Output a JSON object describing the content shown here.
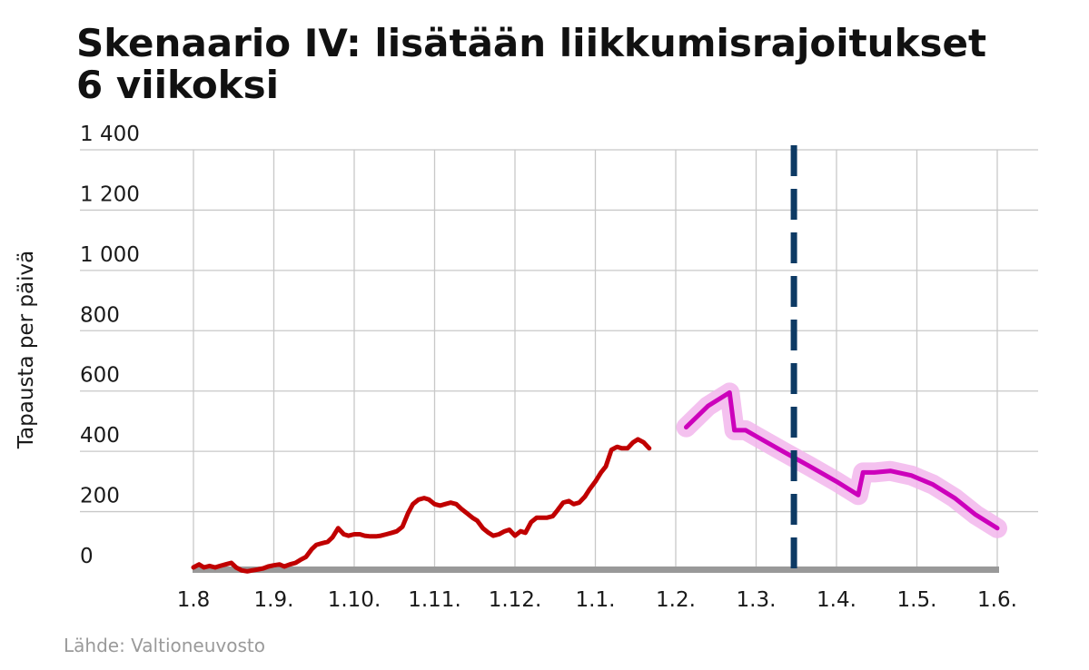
{
  "chart_data": {
    "type": "line",
    "title_lines": [
      "Skenaario IV: lisätään liikkumisrajoitukset",
      "6 viikoksi"
    ],
    "ylabel": "Tapausta per päivä",
    "source": "Lähde: Valtioneuvosto",
    "ylim": [
      0,
      1400
    ],
    "y_ticks": [
      0,
      200,
      400,
      600,
      800,
      1000,
      1200,
      1400
    ],
    "y_tick_labels": [
      "0",
      "200",
      "400",
      "600",
      "800",
      "1 000",
      "1 200",
      "1 400"
    ],
    "x_ticks": [
      "1.8",
      "1.9.",
      "1.10.",
      "1.11.",
      "1.12.",
      "1.1.",
      "1.2.",
      "1.3.",
      "1.4.",
      "1.5.",
      "1.6."
    ],
    "grid": true,
    "marker": {
      "type": "vertical-dashed-line",
      "x": 7.47,
      "color": "#0d3a64"
    },
    "series": [
      {
        "kind": "observed",
        "color": "#c00000",
        "points": [
          [
            0.0,
            15
          ],
          [
            0.07,
            25
          ],
          [
            0.13,
            15
          ],
          [
            0.2,
            20
          ],
          [
            0.27,
            15
          ],
          [
            0.33,
            20
          ],
          [
            0.4,
            25
          ],
          [
            0.47,
            30
          ],
          [
            0.53,
            15
          ],
          [
            0.6,
            5
          ],
          [
            0.67,
            2
          ],
          [
            0.73,
            5
          ],
          [
            0.8,
            8
          ],
          [
            0.87,
            12
          ],
          [
            0.93,
            18
          ],
          [
            1.0,
            22
          ],
          [
            1.07,
            25
          ],
          [
            1.13,
            18
          ],
          [
            1.2,
            25
          ],
          [
            1.27,
            30
          ],
          [
            1.33,
            40
          ],
          [
            1.4,
            50
          ],
          [
            1.47,
            75
          ],
          [
            1.53,
            90
          ],
          [
            1.6,
            95
          ],
          [
            1.67,
            100
          ],
          [
            1.73,
            115
          ],
          [
            1.8,
            145
          ],
          [
            1.87,
            125
          ],
          [
            1.93,
            120
          ],
          [
            2.0,
            125
          ],
          [
            2.07,
            125
          ],
          [
            2.13,
            120
          ],
          [
            2.2,
            118
          ],
          [
            2.27,
            118
          ],
          [
            2.33,
            120
          ],
          [
            2.4,
            125
          ],
          [
            2.47,
            130
          ],
          [
            2.53,
            135
          ],
          [
            2.6,
            150
          ],
          [
            2.67,
            195
          ],
          [
            2.73,
            225
          ],
          [
            2.8,
            240
          ],
          [
            2.87,
            245
          ],
          [
            2.93,
            240
          ],
          [
            3.0,
            225
          ],
          [
            3.07,
            220
          ],
          [
            3.13,
            225
          ],
          [
            3.2,
            230
          ],
          [
            3.27,
            225
          ],
          [
            3.33,
            210
          ],
          [
            3.4,
            195
          ],
          [
            3.47,
            180
          ],
          [
            3.53,
            170
          ],
          [
            3.6,
            145
          ],
          [
            3.67,
            130
          ],
          [
            3.73,
            120
          ],
          [
            3.8,
            125
          ],
          [
            3.87,
            135
          ],
          [
            3.93,
            140
          ],
          [
            4.0,
            120
          ],
          [
            4.07,
            135
          ],
          [
            4.13,
            130
          ],
          [
            4.2,
            165
          ],
          [
            4.27,
            180
          ],
          [
            4.33,
            180
          ],
          [
            4.4,
            180
          ],
          [
            4.47,
            185
          ],
          [
            4.53,
            205
          ],
          [
            4.6,
            230
          ],
          [
            4.67,
            235
          ],
          [
            4.73,
            225
          ],
          [
            4.8,
            230
          ],
          [
            4.87,
            250
          ],
          [
            4.93,
            275
          ],
          [
            5.0,
            300
          ],
          [
            5.07,
            330
          ],
          [
            5.13,
            350
          ],
          [
            5.2,
            405
          ],
          [
            5.27,
            415
          ],
          [
            5.33,
            410
          ],
          [
            5.4,
            410
          ],
          [
            5.47,
            430
          ],
          [
            5.53,
            440
          ],
          [
            5.6,
            430
          ],
          [
            5.67,
            410
          ]
        ]
      },
      {
        "kind": "projection",
        "color": "#cc00bb",
        "band_color": "#f2b6ec",
        "points": [
          [
            6.13,
            480
          ],
          [
            6.4,
            550
          ],
          [
            6.67,
            595
          ],
          [
            6.73,
            470
          ],
          [
            6.87,
            470
          ],
          [
            7.0,
            450
          ],
          [
            7.33,
            400
          ],
          [
            7.67,
            350
          ],
          [
            8.0,
            300
          ],
          [
            8.27,
            255
          ],
          [
            8.33,
            330
          ],
          [
            8.47,
            330
          ],
          [
            8.67,
            335
          ],
          [
            8.93,
            320
          ],
          [
            9.2,
            290
          ],
          [
            9.47,
            245
          ],
          [
            9.73,
            190
          ],
          [
            10.0,
            145
          ]
        ]
      }
    ]
  }
}
